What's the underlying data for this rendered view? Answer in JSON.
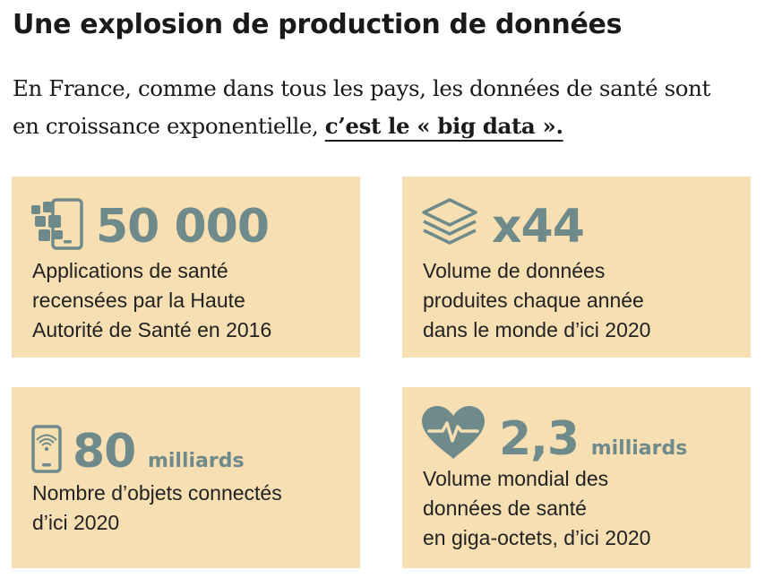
{
  "title": "Une explosion de production de données",
  "intro": {
    "line1": "En France, comme dans tous les pays, les données de santé sont",
    "line2_prefix": "en croissance exponentielle, ",
    "line2_emph": "c’est le « big data »."
  },
  "cards": [
    {
      "icon": "smartphone-apps-icon",
      "value": "50 000",
      "unit": "",
      "lines": [
        "Applications de santé",
        "recensées par la Haute",
        "Autorité de Santé en 2016"
      ]
    },
    {
      "icon": "layers-stack-icon",
      "value": "x44",
      "unit": "",
      "lines": [
        "Volume de données",
        "produites chaque année",
        "dans le monde d’ici 2020"
      ]
    },
    {
      "icon": "smartphone-wifi-icon",
      "value": "80",
      "unit": "milliards",
      "lines": [
        "Nombre d’objets connectés",
        "d’ici 2020"
      ]
    },
    {
      "icon": "heart-pulse-icon",
      "value": "2,3",
      "unit": "milliards",
      "lines": [
        "Volume mondial des",
        "données de santé",
        "en giga-octets, d’ici 2020"
      ]
    }
  ],
  "colors": {
    "card_bg": "#f6dfb2",
    "accent": "#6f8a8b",
    "text": "#222222"
  }
}
